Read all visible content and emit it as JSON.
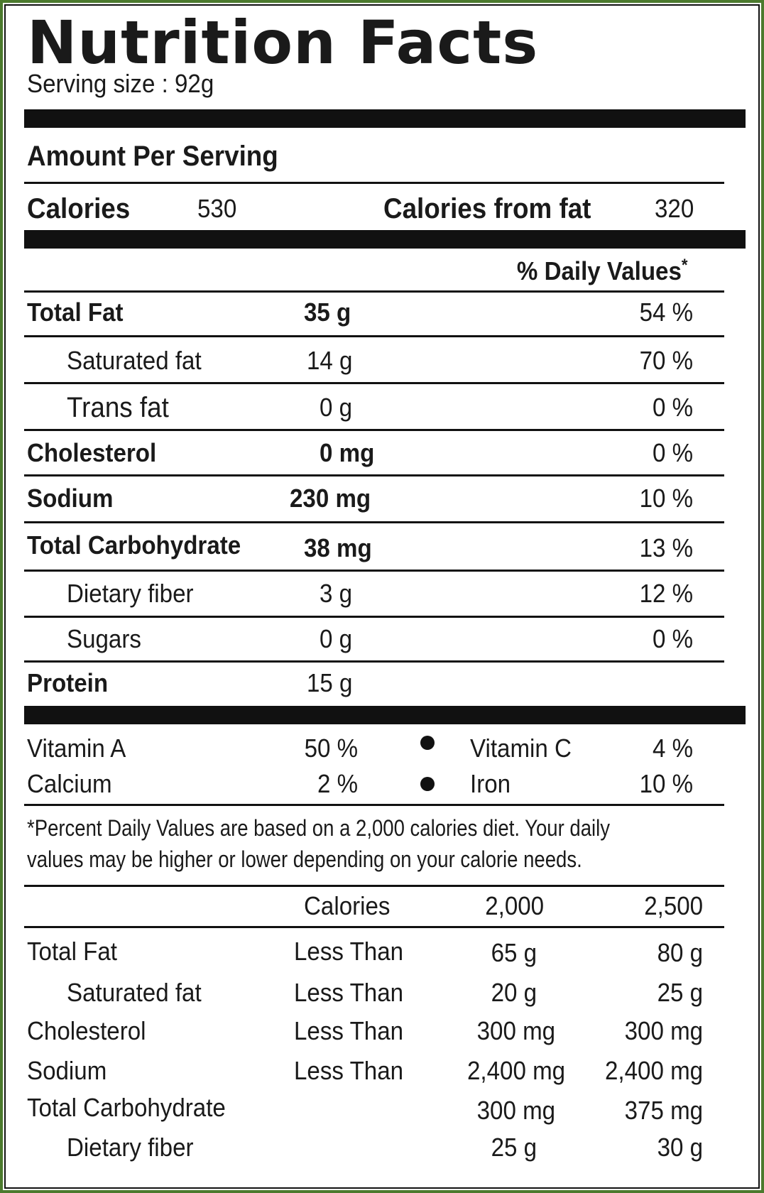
{
  "title": "Nutrition  Facts",
  "serving_size": "Serving size : 92g",
  "amount_per_serving": "Amount Per Serving",
  "calories": {
    "label": "Calories",
    "value": "530",
    "from_fat_label": "Calories from fat",
    "from_fat_value": "320"
  },
  "dv_header": "% Daily Values",
  "dv_asterisk": "*",
  "nutrients": [
    {
      "name": "Total Fat",
      "amount": "35 g",
      "dv": "54 %"
    },
    {
      "name": "Saturated fat",
      "amount": "14 g",
      "dv": "70 %"
    },
    {
      "name": "Trans fat",
      "amount": "0 g",
      "dv": "0 %"
    },
    {
      "name": "Cholesterol",
      "amount": "0 mg",
      "dv": "0 %"
    },
    {
      "name": "Sodium",
      "amount": "230 mg",
      "dv": "10 %"
    },
    {
      "name": "Total Carbohydrate",
      "amount": "38 mg",
      "dv": "13 %"
    },
    {
      "name": "Dietary fiber",
      "amount": "3 g",
      "dv": "12 %"
    },
    {
      "name": "Sugars",
      "amount": "0 g",
      "dv": "0 %"
    },
    {
      "name": "Protein",
      "amount": "15 g",
      "dv": ""
    }
  ],
  "vitamins": [
    {
      "left_name": "Vitamin A",
      "left_value": "50 %",
      "right_name": "Vitamin C",
      "right_value": "4 %"
    },
    {
      "left_name": "Calcium",
      "left_value": "2 %",
      "right_name": "Iron",
      "right_value": "10 %"
    }
  ],
  "footnote": [
    "*Percent Daily Values are based on a 2,000 calories diet. Your daily",
    "values may be higher or lower depending on your calorie needs."
  ],
  "reference": {
    "header": {
      "calories": "Calories",
      "col1": "2,000",
      "col2": "2,500"
    },
    "rows": [
      {
        "name": "Total Fat",
        "qualifier": "Less Than",
        "col1": "65 g",
        "col2": "80 g"
      },
      {
        "name": "Saturated fat",
        "qualifier": "Less Than",
        "col1": "20 g",
        "col2": "25 g"
      },
      {
        "name": "Cholesterol",
        "qualifier": "Less Than",
        "col1": "300 mg",
        "col2": "300 mg"
      },
      {
        "name": "Sodium",
        "qualifier": "Less Than",
        "col1": "2,400 mg",
        "col2": "2,400 mg"
      },
      {
        "name": "Total Carbohydrate",
        "qualifier": "",
        "col1": "300 mg",
        "col2": "375 mg"
      },
      {
        "name": "Dietary fiber",
        "qualifier": "",
        "col1": "25 g",
        "col2": "30 g"
      }
    ]
  }
}
